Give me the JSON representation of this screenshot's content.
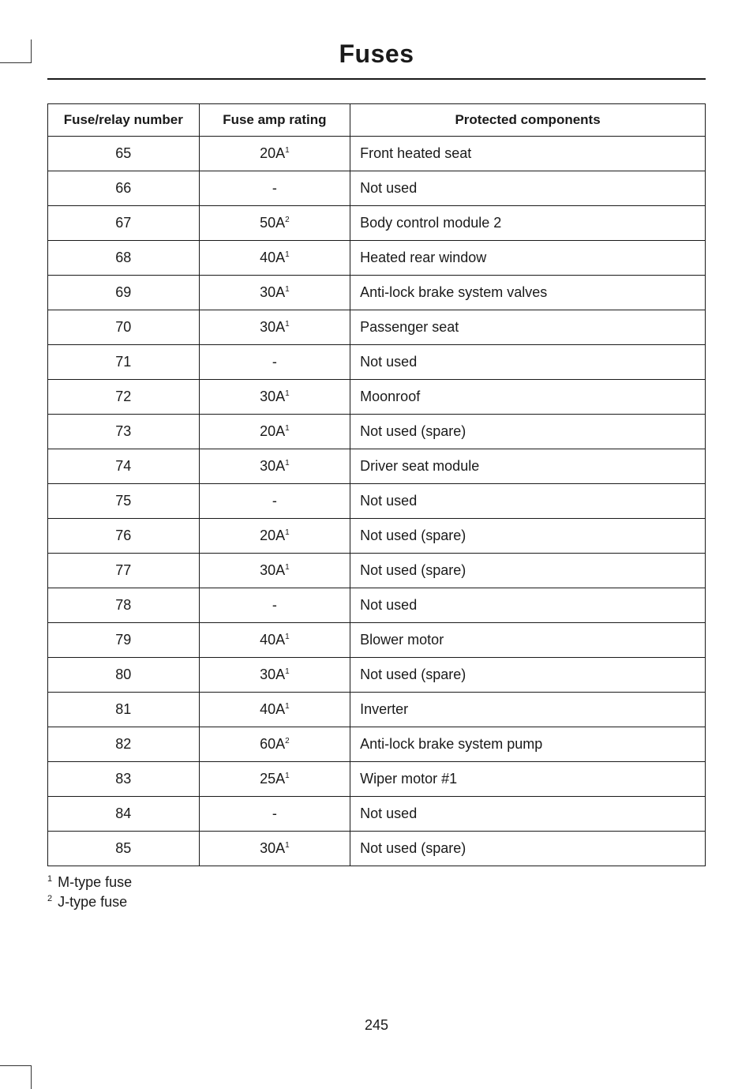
{
  "page": {
    "title": "Fuses",
    "number": "245"
  },
  "table": {
    "headers": {
      "number": "Fuse/relay number",
      "rating": "Fuse amp rating",
      "components": "Protected components"
    },
    "rows": [
      {
        "number": "65",
        "rating": "20A",
        "sup": "1",
        "components": "Front heated seat"
      },
      {
        "number": "66",
        "rating": "-",
        "sup": "",
        "components": "Not used"
      },
      {
        "number": "67",
        "rating": "50A",
        "sup": "2",
        "components": "Body control module 2"
      },
      {
        "number": "68",
        "rating": "40A",
        "sup": "1",
        "components": "Heated rear window"
      },
      {
        "number": "69",
        "rating": "30A",
        "sup": "1",
        "components": "Anti-lock brake system valves"
      },
      {
        "number": "70",
        "rating": "30A",
        "sup": "1",
        "components": "Passenger seat"
      },
      {
        "number": "71",
        "rating": "-",
        "sup": "",
        "components": "Not used"
      },
      {
        "number": "72",
        "rating": "30A",
        "sup": "1",
        "components": "Moonroof"
      },
      {
        "number": "73",
        "rating": "20A",
        "sup": "1",
        "components": "Not used (spare)"
      },
      {
        "number": "74",
        "rating": "30A",
        "sup": "1",
        "components": "Driver seat module"
      },
      {
        "number": "75",
        "rating": "-",
        "sup": "",
        "components": "Not used"
      },
      {
        "number": "76",
        "rating": "20A",
        "sup": "1",
        "components": "Not used (spare)"
      },
      {
        "number": "77",
        "rating": "30A",
        "sup": "1",
        "components": "Not used (spare)"
      },
      {
        "number": "78",
        "rating": "-",
        "sup": "",
        "components": "Not used"
      },
      {
        "number": "79",
        "rating": "40A",
        "sup": "1",
        "components": "Blower motor"
      },
      {
        "number": "80",
        "rating": "30A",
        "sup": "1",
        "components": "Not used (spare)"
      },
      {
        "number": "81",
        "rating": "40A",
        "sup": "1",
        "components": "Inverter"
      },
      {
        "number": "82",
        "rating": "60A",
        "sup": "2",
        "components": "Anti-lock brake system pump"
      },
      {
        "number": "83",
        "rating": "25A",
        "sup": "1",
        "components": "Wiper motor #1"
      },
      {
        "number": "84",
        "rating": "-",
        "sup": "",
        "components": "Not used"
      },
      {
        "number": "85",
        "rating": "30A",
        "sup": "1",
        "components": "Not used (spare)"
      }
    ]
  },
  "footnotes": [
    {
      "sup": "1",
      "text": "M-type fuse"
    },
    {
      "sup": "2",
      "text": "J-type fuse"
    }
  ]
}
